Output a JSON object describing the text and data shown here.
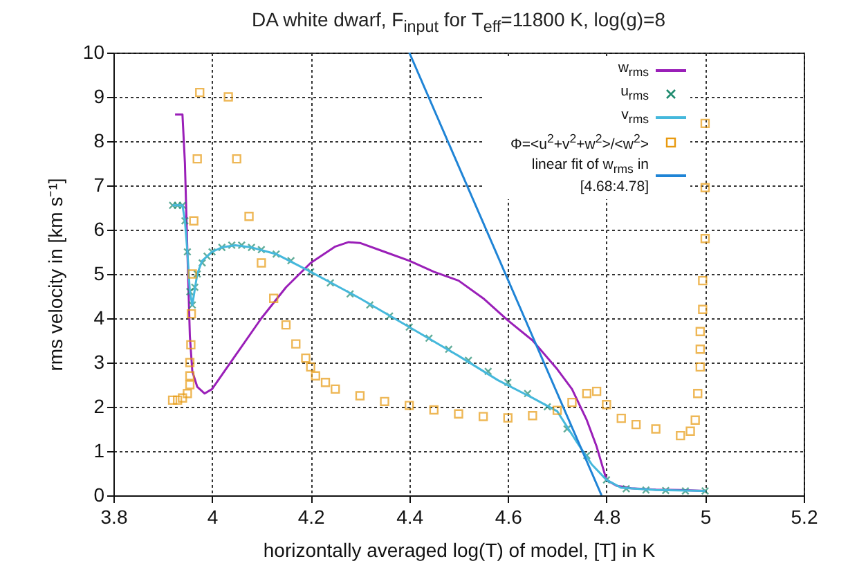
{
  "chart_data": {
    "type": "line",
    "title": "DA white dwarf, F$_{input}$ for T$_{eff}$=11800 K, log(g)=8",
    "xlabel": "horizontally averaged log(T) of model, [T] in K",
    "ylabel": "rms velocity in [km s⁻¹]",
    "xlim": [
      3.8,
      5.2
    ],
    "xticks": [
      3.8,
      {
        "value": 4,
        "label": "4"
      },
      4.2,
      4.4,
      4.6,
      4.8,
      {
        "value": 5,
        "label": "5"
      },
      5.2
    ],
    "ylim": [
      0,
      10
    ],
    "yticks": [
      0,
      1,
      2,
      3,
      4,
      5,
      6,
      7,
      8,
      9,
      10
    ],
    "grid": true,
    "legend": "top right",
    "series": [
      {
        "name": "w$_{rms}$",
        "type": "line",
        "color": "#9a1fb8",
        "x": [
          3.925,
          3.94,
          3.945,
          3.95,
          3.955,
          3.96,
          3.97,
          3.985,
          4.0,
          4.05,
          4.1,
          4.15,
          4.2,
          4.25,
          4.277,
          4.3,
          4.35,
          4.4,
          4.45,
          4.5,
          4.55,
          4.6,
          4.65,
          4.7,
          4.73,
          4.76,
          4.78,
          4.8,
          4.82,
          4.85,
          4.9,
          4.95,
          5.0
        ],
        "values": [
          8.6,
          8.6,
          7.5,
          5.5,
          3.6,
          2.8,
          2.45,
          2.3,
          2.4,
          3.2,
          4.0,
          4.7,
          5.25,
          5.62,
          5.72,
          5.7,
          5.5,
          5.3,
          5.05,
          4.85,
          4.45,
          3.95,
          3.5,
          2.85,
          2.4,
          1.7,
          1.1,
          0.35,
          0.22,
          0.16,
          0.13,
          0.12,
          0.1
        ]
      },
      {
        "name": "u$_{rms}$",
        "type": "scatter",
        "marker": "cross",
        "color": "#1e8a6e",
        "x": [
          3.92,
          3.93,
          3.94,
          3.945,
          3.95,
          3.955,
          3.96,
          3.965,
          3.97,
          3.98,
          3.99,
          4.0,
          4.02,
          4.04,
          4.06,
          4.08,
          4.1,
          4.13,
          4.16,
          4.2,
          4.24,
          4.28,
          4.32,
          4.36,
          4.4,
          4.44,
          4.48,
          4.52,
          4.56,
          4.6,
          4.64,
          4.68,
          4.72,
          4.76,
          4.8,
          4.84,
          4.88,
          4.92,
          4.96,
          5.0
        ],
        "values": [
          6.55,
          6.55,
          6.55,
          6.2,
          5.5,
          4.6,
          4.3,
          4.7,
          5.0,
          5.25,
          5.4,
          5.5,
          5.6,
          5.65,
          5.65,
          5.6,
          5.55,
          5.45,
          5.3,
          5.05,
          4.8,
          4.55,
          4.3,
          4.05,
          3.8,
          3.55,
          3.3,
          3.05,
          2.8,
          2.55,
          2.3,
          2.0,
          1.5,
          0.9,
          0.35,
          0.15,
          0.12,
          0.11,
          0.1,
          0.1
        ]
      },
      {
        "name": "v$_{rms}$",
        "type": "line",
        "color": "#45b8dc",
        "x": [
          3.92,
          3.94,
          3.945,
          3.95,
          3.955,
          3.96,
          3.97,
          3.98,
          4.0,
          4.02,
          4.047,
          4.08,
          4.13,
          4.2,
          4.3,
          4.4,
          4.5,
          4.58,
          4.65,
          4.7,
          4.74,
          4.77,
          4.8,
          4.83,
          4.9,
          5.0
        ],
        "values": [
          6.55,
          6.55,
          6.2,
          5.5,
          4.6,
          4.3,
          5.0,
          5.3,
          5.5,
          5.6,
          5.65,
          5.6,
          5.45,
          5.05,
          4.45,
          3.8,
          3.15,
          2.6,
          2.2,
          1.9,
          1.2,
          0.7,
          0.35,
          0.17,
          0.12,
          0.1
        ]
      },
      {
        "name": "Φ=<u$^{2}$+v$^{2}$+w$^{2}$>/<w$^{2}$>",
        "type": "scatter",
        "marker": "square",
        "color": "#e89a10",
        "x": [
          3.92,
          3.93,
          3.94,
          3.95,
          3.955,
          3.955,
          3.955,
          3.957,
          3.958,
          3.96,
          3.963,
          3.97,
          3.975,
          4.033,
          4.05,
          4.075,
          4.1,
          4.125,
          4.15,
          4.17,
          4.19,
          4.2,
          4.21,
          4.23,
          4.25,
          4.3,
          4.35,
          4.4,
          4.45,
          4.5,
          4.55,
          4.6,
          4.65,
          4.7,
          4.73,
          4.76,
          4.78,
          4.8,
          4.83,
          4.86,
          4.9,
          4.95,
          4.97,
          4.98,
          4.985,
          4.99,
          4.99,
          4.99,
          4.995,
          4.995,
          5.0,
          5.0,
          5.0
        ],
        "values": [
          2.15,
          2.15,
          2.2,
          2.3,
          2.5,
          2.7,
          3.0,
          3.4,
          4.1,
          5.0,
          6.2,
          7.6,
          9.1,
          9.0,
          7.6,
          6.3,
          5.25,
          4.45,
          3.85,
          3.42,
          3.1,
          2.9,
          2.7,
          2.55,
          2.4,
          2.25,
          2.12,
          2.03,
          1.93,
          1.84,
          1.78,
          1.75,
          1.8,
          1.92,
          2.1,
          2.3,
          2.35,
          2.05,
          1.74,
          1.6,
          1.5,
          1.35,
          1.45,
          1.7,
          2.3,
          2.9,
          3.3,
          3.7,
          4.2,
          4.85,
          5.8,
          6.95,
          8.4
        ]
      },
      {
        "name": "linear fit of w$_{rms}$ in [4.68:4.78]",
        "type": "line",
        "color": "#1f84d6",
        "x": [
          4.4,
          4.79
        ],
        "values": [
          10,
          0
        ]
      }
    ]
  }
}
